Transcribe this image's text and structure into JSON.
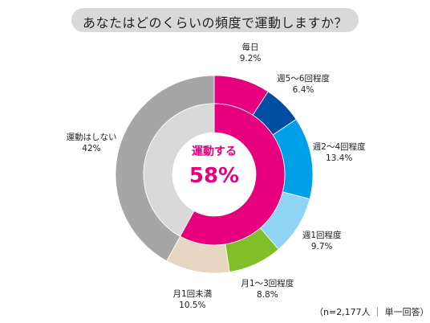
{
  "title": "あなたはどのくらいの頻度で運動しますか？",
  "note": "（n=2,177人 ｜ 単一回答）",
  "center": {
    "label": "運動する",
    "value": "58%"
  },
  "colors": {
    "exercise_inner": "#e6007e",
    "no_exercise_inner": "#d9d9d9",
    "title_bg": "#d9d9d9"
  },
  "chart_data": {
    "type": "pie",
    "style": "double-donut",
    "outer": {
      "categories": [
        "毎日",
        "週5～6回程度",
        "週2～4回程度",
        "週1回程度",
        "月1～3回程度",
        "月1回未満",
        "運動はしない"
      ],
      "value_labels": [
        "9.2%",
        "6.4%",
        "13.4%",
        "9.7%",
        "8.8%",
        "10.5%",
        "42%"
      ],
      "values": [
        9.2,
        6.4,
        13.4,
        9.7,
        8.8,
        10.5,
        42
      ],
      "colors": [
        "#e6007e",
        "#004ea2",
        "#00a0e9",
        "#8fd3f5",
        "#7fbf2a",
        "#e6d6c2",
        "#a6a6a6"
      ]
    },
    "inner": {
      "categories": [
        "運動する",
        "運動しない"
      ],
      "values": [
        58,
        42
      ],
      "colors": [
        "#e6007e",
        "#d9d9d9"
      ]
    }
  }
}
